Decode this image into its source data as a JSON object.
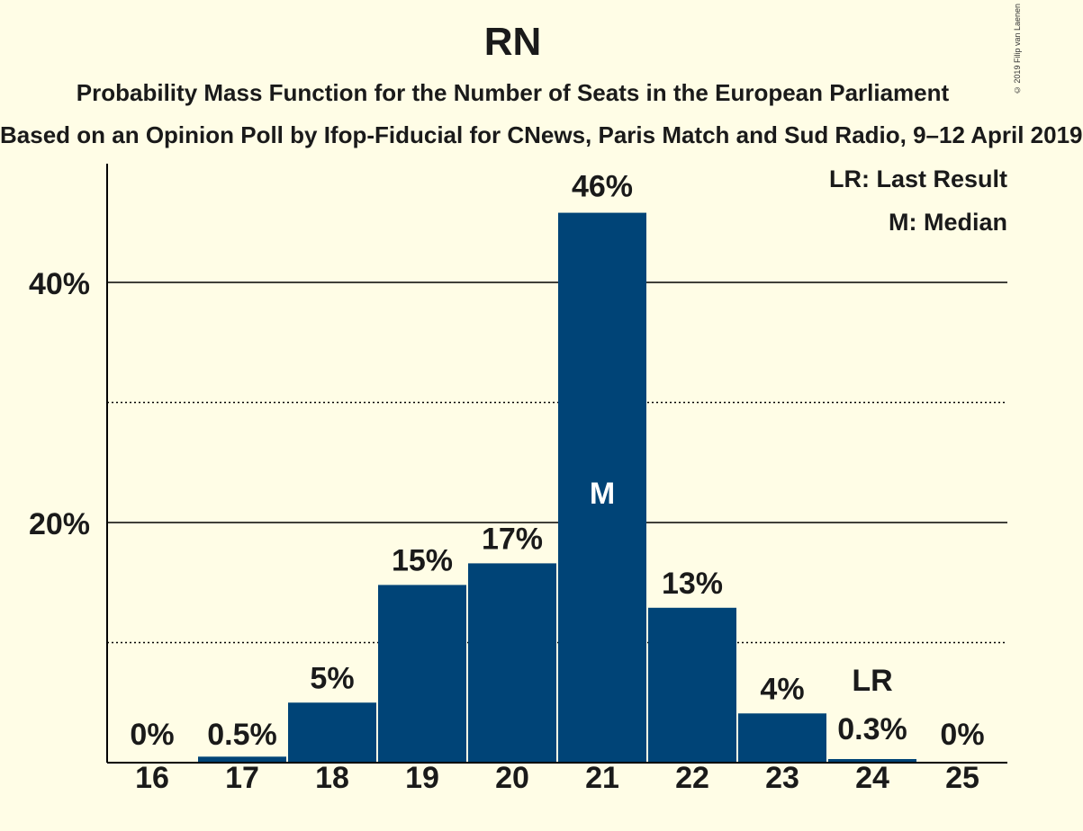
{
  "chart_data": {
    "type": "bar",
    "title": "RN",
    "subtitle": "Probability Mass Function for the Number of Seats in the European Parliament",
    "subtitle2": "Based on an Opinion Poll by Ifop-Fiducial for CNews, Paris Match and Sud Radio, 9–12 April 2019",
    "categories": [
      "16",
      "17",
      "18",
      "19",
      "20",
      "21",
      "22",
      "23",
      "24",
      "25"
    ],
    "values": [
      0,
      0.5,
      5,
      15,
      17,
      46,
      13,
      4,
      0.3,
      0
    ],
    "value_labels": [
      "0%",
      "0.5%",
      "5%",
      "15%",
      "17%",
      "46%",
      "13%",
      "4%",
      "0.3%",
      "0%"
    ],
    "bar_heights_pct": [
      0,
      0.5,
      5.0,
      14.8,
      16.6,
      45.8,
      12.9,
      4.1,
      0.3,
      0
    ],
    "median_index": 5,
    "median_label": "M",
    "last_result_index": 8,
    "last_result_label": "LR",
    "ylim": [
      0,
      50
    ],
    "yticks": [
      {
        "value": 20,
        "label": "20%"
      },
      {
        "value": 40,
        "label": "40%"
      }
    ],
    "minor_grid": [
      10,
      30
    ],
    "grid": true,
    "legend_position": "top-right",
    "legend": [
      "LR: Last Result",
      "M: Median"
    ],
    "bar_color": "#004477",
    "background_color": "#fffde6"
  },
  "copyright": "© 2019 Filip van Laenen"
}
